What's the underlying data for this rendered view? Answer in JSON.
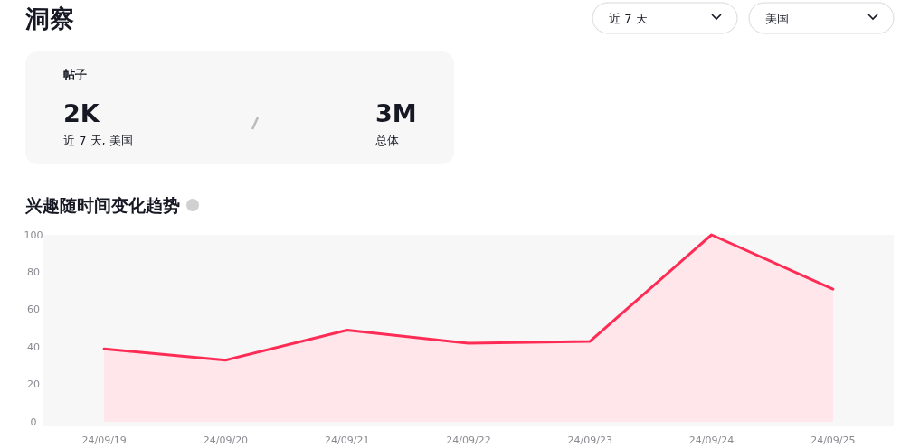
{
  "chart_data": {
    "type": "area",
    "title": "洞察",
    "subtitle": "兴趣随时间变化趋势",
    "categories": [
      "24/09/19",
      "24/09/20",
      "24/09/21",
      "24/09/22",
      "24/09/23",
      "24/09/24",
      "24/09/25"
    ],
    "series": [
      {
        "color": "#fe2c55",
        "values": [
          39,
          33,
          49,
          42,
          43,
          100,
          71
        ]
      }
    ],
    "ylim": [
      0,
      100
    ],
    "yticks": [
      0,
      20,
      40,
      60,
      80,
      100
    ],
    "annotations": [
      "近 7 天",
      "美国",
      "帖子",
      "2K",
      "近 7 天, 美国",
      "3M",
      "总体"
    ]
  }
}
